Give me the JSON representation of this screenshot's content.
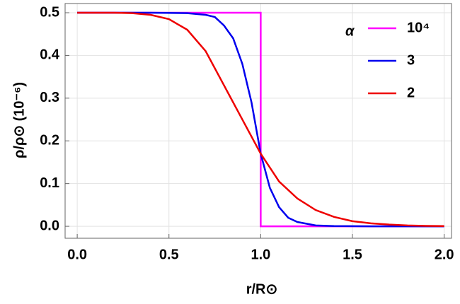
{
  "chart_data": {
    "type": "line",
    "xlabel": "r/R⊙",
    "ylabel": "ρ/ρ⊙ (10⁻⁶)",
    "legend_title": "α",
    "legend": "top-right",
    "grid": true,
    "xlim": [
      -0.066,
      2.04
    ],
    "ylim": [
      -0.028,
      0.5215
    ],
    "xticks": [
      {
        "value": 0,
        "label": "0.0"
      },
      0.5,
      {
        "value": 1,
        "label": "1.0"
      },
      1.5,
      {
        "value": 2,
        "label": "2.0"
      }
    ],
    "yticks": [
      {
        "value": 0,
        "label": "0.0"
      },
      0.1,
      0.2,
      0.3,
      0.4,
      0.5
    ],
    "series": [
      {
        "name": "10⁴",
        "color": "#ff00ff",
        "x": [
          0,
          1,
          1,
          2
        ],
        "values": [
          0.5,
          0.5,
          0,
          0
        ]
      },
      {
        "name": "3",
        "color": "#0000ee",
        "x": [
          0,
          0.2,
          0.4,
          0.6,
          0.7,
          0.75,
          0.8,
          0.85,
          0.9,
          0.95,
          1.0,
          1.05,
          1.1,
          1.15,
          1.2,
          1.3,
          1.4,
          1.6,
          2.0
        ],
        "values": [
          0.5,
          0.5,
          0.5,
          0.499,
          0.495,
          0.49,
          0.47,
          0.44,
          0.38,
          0.29,
          0.17,
          0.09,
          0.045,
          0.02,
          0.01,
          0.002,
          0.0005,
          0,
          0
        ]
      },
      {
        "name": "2",
        "color": "#ee0000",
        "x": [
          0,
          0.1,
          0.2,
          0.3,
          0.4,
          0.5,
          0.6,
          0.7,
          0.8,
          0.9,
          1.0,
          1.1,
          1.2,
          1.3,
          1.4,
          1.5,
          1.6,
          1.7,
          1.8,
          1.9,
          2.0
        ],
        "values": [
          0.5,
          0.5,
          0.5,
          0.499,
          0.495,
          0.485,
          0.46,
          0.41,
          0.33,
          0.25,
          0.17,
          0.105,
          0.065,
          0.038,
          0.022,
          0.012,
          0.007,
          0.004,
          0.002,
          0.001,
          0.0005
        ]
      }
    ]
  }
}
